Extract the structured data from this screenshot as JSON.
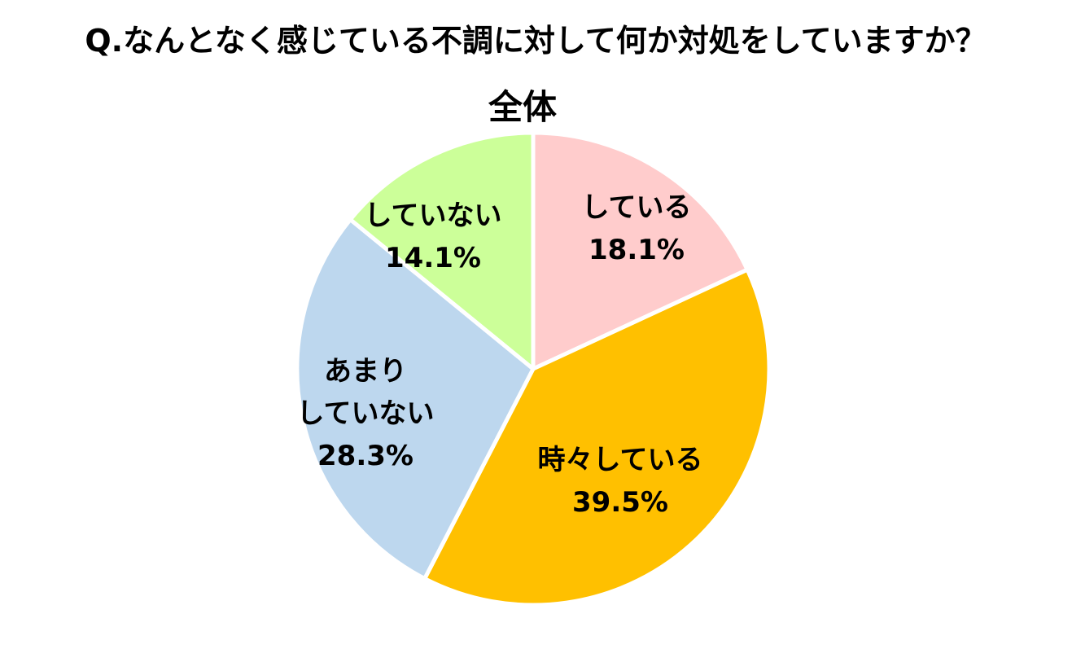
{
  "question": "Q.なんとなく感じている不調に対して何か対処をしていますか？",
  "chart_data": {
    "type": "pie",
    "title": "全体",
    "start_angle_deg": 0,
    "direction": "clockwise",
    "unit": "%",
    "slices": [
      {
        "label_lines": [
          "している"
        ],
        "value": 18.1,
        "value_label": "18.1%",
        "color": "#FFCCCC"
      },
      {
        "label_lines": [
          "時々している"
        ],
        "value": 39.5,
        "value_label": "39.5%",
        "color": "#FFC000"
      },
      {
        "label_lines": [
          "あまり",
          "していない"
        ],
        "value": 28.3,
        "value_label": "28.3%",
        "color": "#BDD7EE"
      },
      {
        "label_lines": [
          "していない"
        ],
        "value": 14.1,
        "value_label": "14.1%",
        "color": "#CCFF99"
      }
    ]
  }
}
